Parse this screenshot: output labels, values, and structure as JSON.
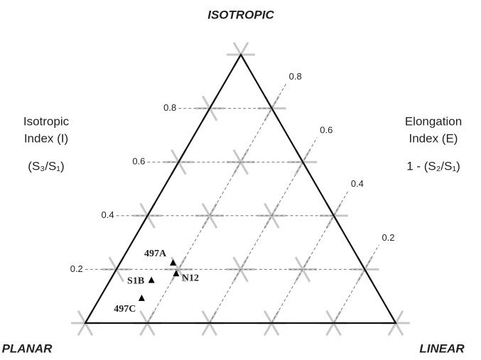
{
  "chart_data": {
    "type": "ternary",
    "apex_labels": {
      "top": "ISOTROPIC",
      "left": "PLANAR",
      "right": "LINEAR"
    },
    "left_axis": {
      "lines": [
        "Isotropic",
        "Index (I)"
      ],
      "formula": "(S₃/S₁)"
    },
    "right_axis": {
      "lines": [
        "Elongation",
        "Index (E)"
      ],
      "formula": "1 - (S₂/S₁)"
    },
    "iticks": [
      0.2,
      0.4,
      0.6,
      0.8
    ],
    "eticks": [
      0.2,
      0.4,
      0.6,
      0.8
    ],
    "points": {
      "labels": [
        "497A",
        "N12",
        "S1B",
        "497C"
      ],
      "I": [
        0.225,
        0.185,
        0.16,
        0.093
      ],
      "E": [
        0.83,
        0.8,
        0.867,
        0.865
      ],
      "color": "#000000"
    }
  }
}
